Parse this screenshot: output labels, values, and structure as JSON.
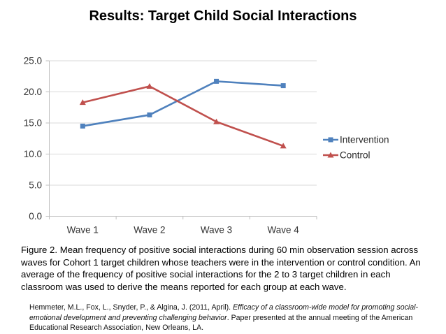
{
  "title": "Results: Target Child Social Interactions",
  "caption": "Figure 2. Mean frequency of positive social interactions during 60 min observation session across waves for Cohort 1 target children whose teachers were in the intervention or control condition. An average of the frequency of positive social interactions for the 2 to 3 target children in each classroom was used to derive the means reported for each group at each wave.",
  "citation": {
    "prefix": "Hemmeter, M.L., Fox, L., Snyder, P., & Algina, J. (2011, April). ",
    "italic": "Efficacy of a classroom-wide model for promoting social-emotional development and preventing challenging behavior",
    "suffix": ". Paper presented at the annual meeting of the American Educational Research Association, New Orleans, LA."
  },
  "chart_data": {
    "type": "line",
    "title": "",
    "xlabel": "",
    "ylabel": "",
    "categories": [
      "Wave 1",
      "Wave 2",
      "Wave 3",
      "Wave 4"
    ],
    "series": [
      {
        "name": "Intervention",
        "marker": "square",
        "color": "#4F81BD",
        "values": [
          14.5,
          16.3,
          21.7,
          21.0
        ]
      },
      {
        "name": "Control",
        "marker": "triangle",
        "color": "#C0504D",
        "values": [
          18.3,
          20.9,
          15.2,
          11.3
        ]
      }
    ],
    "ylim": [
      0,
      25
    ],
    "y_ticks": [
      "0.0",
      "5.0",
      "10.0",
      "15.0",
      "20.0",
      "25.0"
    ],
    "grid": true,
    "legend_position": "right"
  },
  "colors": {
    "intervention": "#4F81BD",
    "control": "#C0504D",
    "gridline": "#D9D9D9",
    "axis": "#BFBFBF",
    "tick_text": "#333333",
    "legend_text": "#262626"
  }
}
